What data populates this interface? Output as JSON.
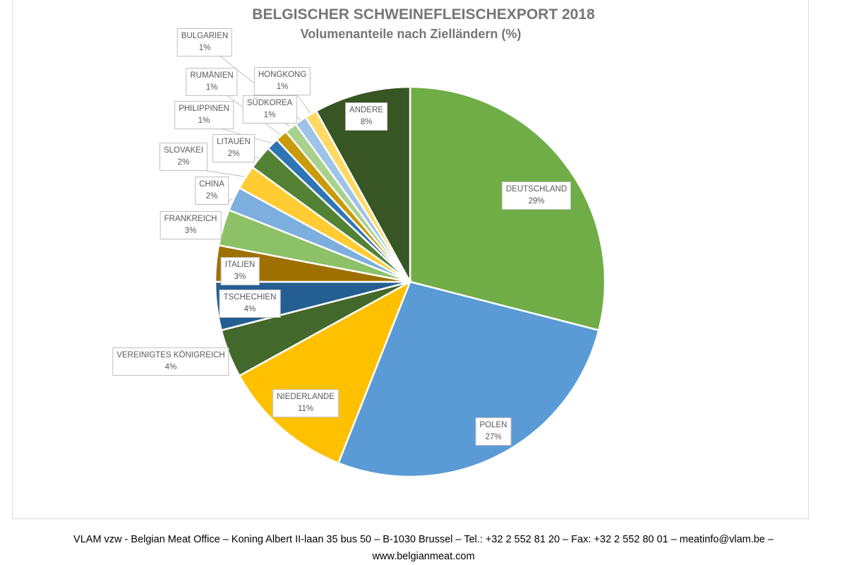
{
  "chart_data": {
    "type": "pie",
    "title": "BELGISCHER SCHWEINEFLEISCHEXPORT 2018",
    "subtitle": "Volumenanteile nach Zielländern (%)",
    "unit": "%",
    "start": "12 o'clock, clockwise",
    "slices": [
      {
        "label": "DEUTSCHLAND",
        "value": 29,
        "display": "29%",
        "color": "#70AD47"
      },
      {
        "label": "POLEN",
        "value": 27,
        "display": "27%",
        "color": "#5B9BD5"
      },
      {
        "label": "NIEDERLANDE",
        "value": 11,
        "display": "11%",
        "color": "#FFC000"
      },
      {
        "label": "VEREINIGTES KÖNIGREICH",
        "value": 4,
        "display": "4%",
        "color": "#43682B"
      },
      {
        "label": "TSCHECHIEN",
        "value": 4,
        "display": "4%",
        "color": "#255E91"
      },
      {
        "label": "ITALIEN",
        "value": 3,
        "display": "3%",
        "color": "#9E7000"
      },
      {
        "label": "FRANKREICH",
        "value": 3,
        "display": "3%",
        "color": "#8CC168"
      },
      {
        "label": "CHINA",
        "value": 2,
        "display": "2%",
        "color": "#7CAFDD"
      },
      {
        "label": "SLOVAKEI",
        "value": 2,
        "display": "2%",
        "color": "#FFCD33"
      },
      {
        "label": "LITAUEN",
        "value": 2,
        "display": "2%",
        "color": "#548235"
      },
      {
        "label": "PHILIPPINEN",
        "value": 1,
        "display": "1%",
        "color": "#2E75B6"
      },
      {
        "label": "RUMÄNIEN",
        "value": 1,
        "display": "1%",
        "color": "#C89B0C"
      },
      {
        "label": "SÜDKOREA",
        "value": 1,
        "display": "1%",
        "color": "#A9D18E"
      },
      {
        "label": "BULGARIEN",
        "value": 1,
        "display": "1%",
        "color": "#9DC3E6"
      },
      {
        "label": "HONGKONG",
        "value": 1,
        "display": "1%",
        "color": "#FFD966"
      },
      {
        "label": "ANDERE",
        "value": 8,
        "display": "8%",
        "color": "#375623"
      }
    ]
  },
  "footer": {
    "line1": "VLAM vzw - Belgian Meat Office – Koning Albert II-laan 35 bus 50 – B-1030 Brussel – Tel.: +32 2 552 81 20 – Fax: +32 2 552 80 01 – meatinfo@vlam.be –",
    "line2": "www.belgianmeat.com"
  }
}
